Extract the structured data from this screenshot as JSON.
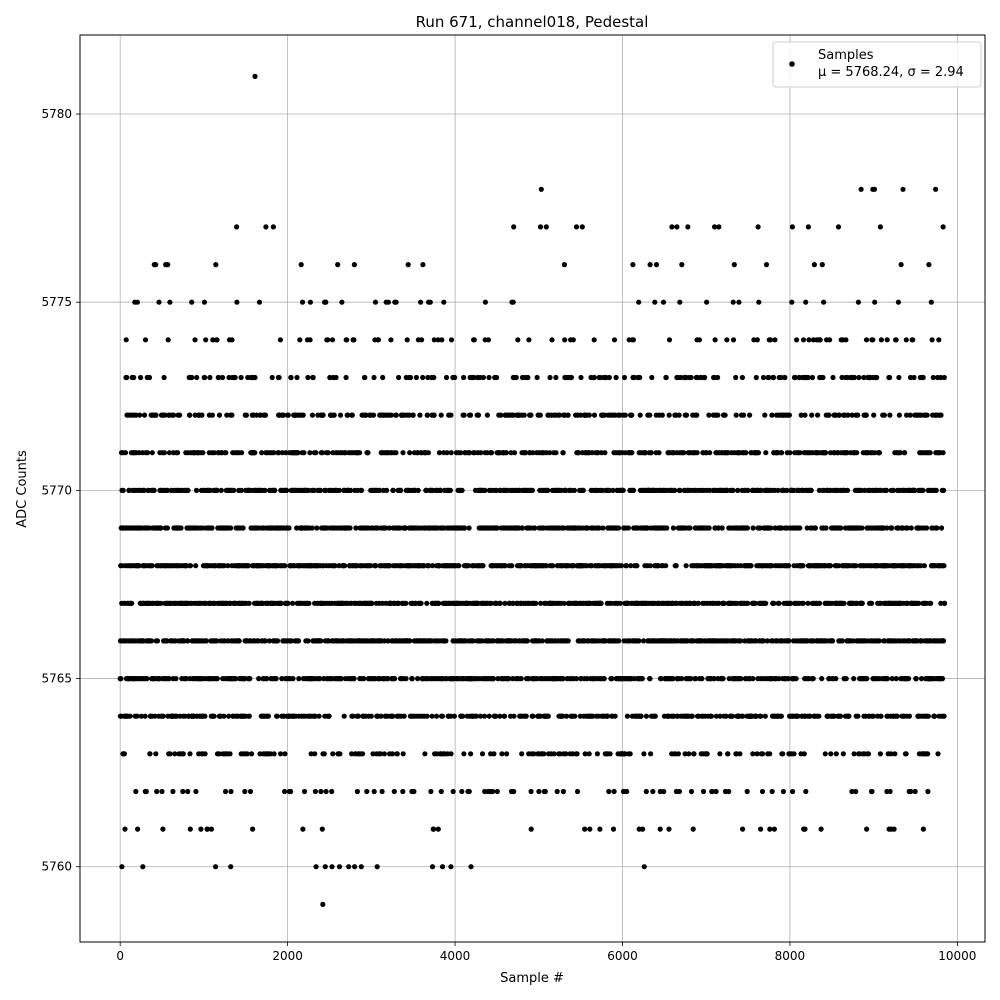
{
  "chart_data": {
    "type": "scatter",
    "title": "Run 671, channel018, Pedestal",
    "xlabel": "Sample #",
    "ylabel": "ADC Counts",
    "xlim": [
      -480,
      10330
    ],
    "ylim": [
      5758,
      5782.1
    ],
    "xticks": [
      0,
      2000,
      4000,
      6000,
      8000,
      10000
    ],
    "xtick_labels": [
      "0",
      "2000",
      "4000",
      "6000",
      "8000",
      "10000"
    ],
    "yticks": [
      5760,
      5765,
      5770,
      5775,
      5780
    ],
    "ytick_labels": [
      "5760",
      "5765",
      "5770",
      "5775",
      "5780"
    ],
    "grid": true,
    "legend_position": "top-right",
    "legend": {
      "label": "Samples",
      "stats": "μ = 5768.24, σ = 2.94"
    },
    "n_samples": 9850,
    "series": [
      {
        "name": "Samples",
        "color": "#000000",
        "marker": "dot",
        "stats": {
          "mean": 5768.24,
          "std": 2.94
        },
        "level_distribution": {
          "5759": 0.0002,
          "5760": 0.0015,
          "5761": 0.004,
          "5762": 0.014,
          "5763": 0.04,
          "5764": 0.075,
          "5765": 0.1,
          "5766": 0.125,
          "5767": 0.128,
          "5768": 0.125,
          "5769": 0.11,
          "5770": 0.095,
          "5771": 0.07,
          "5772": 0.048,
          "5773": 0.032,
          "5774": 0.016,
          "5775": 0.009,
          "5776": 0.004,
          "5777": 0.0018,
          "5778": 0.0006,
          "5781": 0.0001
        },
        "outliers": [
          {
            "x": 1610,
            "y": 5781
          },
          {
            "x": 2420,
            "y": 5759
          },
          {
            "x": 5030,
            "y": 5778
          },
          {
            "x": 8850,
            "y": 5778
          },
          {
            "x": 8990,
            "y": 5778
          },
          {
            "x": 9010,
            "y": 5778
          },
          {
            "x": 9350,
            "y": 5778
          },
          {
            "x": 9740,
            "y": 5778
          },
          {
            "x": 1390,
            "y": 5777
          },
          {
            "x": 1740,
            "y": 5777
          },
          {
            "x": 1830,
            "y": 5777
          },
          {
            "x": 4700,
            "y": 5777
          },
          {
            "x": 5020,
            "y": 5777
          },
          {
            "x": 5090,
            "y": 5777
          },
          {
            "x": 5450,
            "y": 5777
          },
          {
            "x": 5520,
            "y": 5777
          },
          {
            "x": 6590,
            "y": 5777
          },
          {
            "x": 6650,
            "y": 5777
          },
          {
            "x": 6780,
            "y": 5777
          },
          {
            "x": 7100,
            "y": 5777
          },
          {
            "x": 7150,
            "y": 5777
          },
          {
            "x": 7620,
            "y": 5777
          },
          {
            "x": 8030,
            "y": 5777
          },
          {
            "x": 8220,
            "y": 5777
          },
          {
            "x": 8580,
            "y": 5777
          },
          {
            "x": 9080,
            "y": 5777
          },
          {
            "x": 9830,
            "y": 5777
          },
          {
            "x": 20,
            "y": 5760
          },
          {
            "x": 270,
            "y": 5760
          },
          {
            "x": 1140,
            "y": 5760
          },
          {
            "x": 1320,
            "y": 5760
          },
          {
            "x": 2340,
            "y": 5760
          },
          {
            "x": 2450,
            "y": 5760
          },
          {
            "x": 2530,
            "y": 5760
          },
          {
            "x": 2620,
            "y": 5760
          },
          {
            "x": 2730,
            "y": 5760
          },
          {
            "x": 2800,
            "y": 5760
          },
          {
            "x": 2880,
            "y": 5760
          },
          {
            "x": 3070,
            "y": 5760
          },
          {
            "x": 3730,
            "y": 5760
          },
          {
            "x": 3850,
            "y": 5760
          },
          {
            "x": 3950,
            "y": 5760
          },
          {
            "x": 4190,
            "y": 5760
          },
          {
            "x": 6260,
            "y": 5760
          },
          {
            "x": 5730,
            "y": 5761
          },
          {
            "x": 7650,
            "y": 5761
          },
          {
            "x": 8180,
            "y": 5761
          },
          {
            "x": 6200,
            "y": 5761
          },
          {
            "x": 6240,
            "y": 5761
          }
        ]
      }
    ]
  }
}
